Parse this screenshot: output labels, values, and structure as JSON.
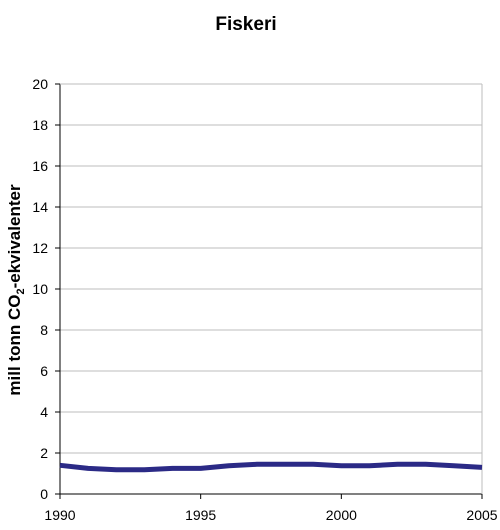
{
  "chart_data": {
    "type": "line",
    "title": "Fiskeri",
    "ylabel": "mill tonn CO₂-ekvivalenter",
    "ylabel_parts": {
      "before": "mill tonn CO",
      "subscript": "2",
      "after": "-ekvivalenter"
    },
    "xlabel": "",
    "xlim": [
      1990,
      2005
    ],
    "ylim": [
      0,
      20
    ],
    "x_ticks": [
      "1990",
      "1995",
      "2000",
      "2005"
    ],
    "y_ticks": [
      "0",
      "2",
      "4",
      "6",
      "8",
      "10",
      "12",
      "14",
      "16",
      "18",
      "20"
    ],
    "grid": true,
    "series": [
      {
        "color": "#2b2a86",
        "x": [
          1990,
          1991,
          1992,
          1993,
          1994,
          1995,
          1996,
          1997,
          1998,
          1999,
          2000,
          2001,
          2002,
          2003,
          2004,
          2005
        ],
        "values": [
          1.4,
          1.25,
          1.18,
          1.18,
          1.25,
          1.25,
          1.38,
          1.45,
          1.45,
          1.45,
          1.38,
          1.38,
          1.45,
          1.45,
          1.38,
          1.3
        ]
      }
    ]
  }
}
